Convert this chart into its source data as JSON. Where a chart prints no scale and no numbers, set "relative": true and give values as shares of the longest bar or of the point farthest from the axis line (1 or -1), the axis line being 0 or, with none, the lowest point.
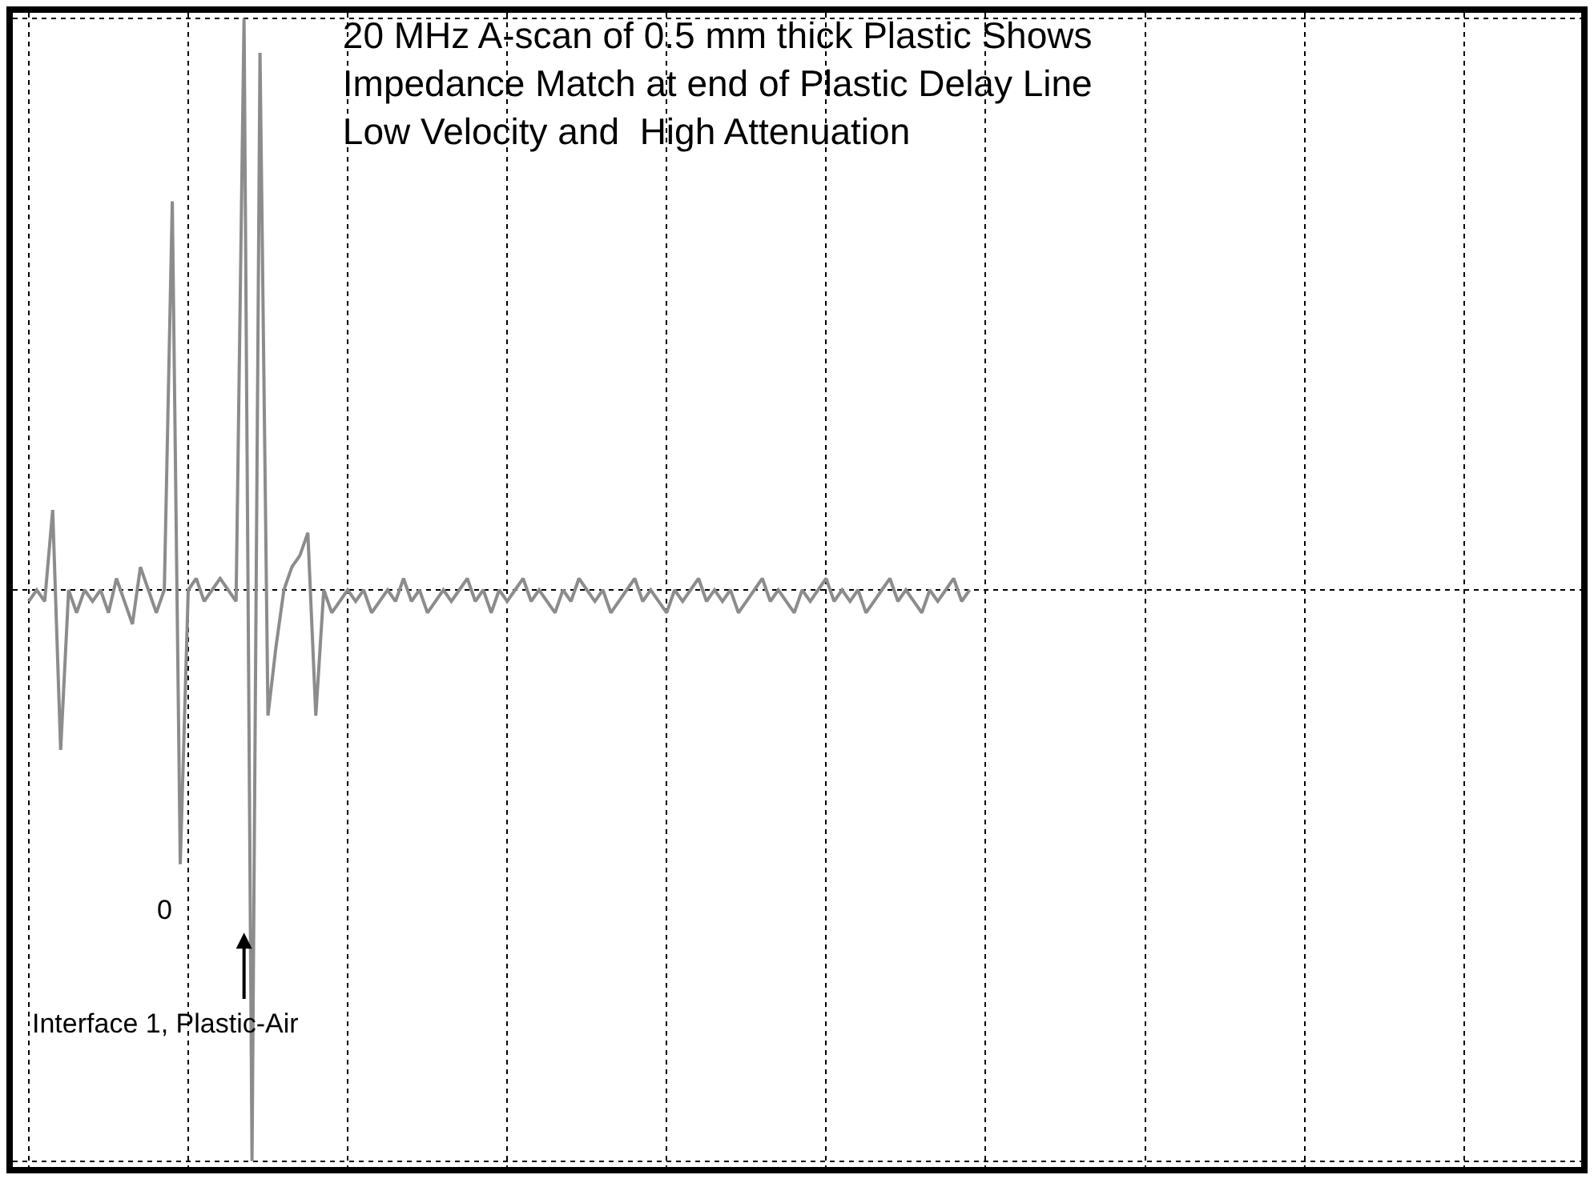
{
  "chart_data": {
    "type": "line",
    "relative": true,
    "title": "20 MHz A-scan of 0.5 mm thick Plastic Shows\nImpedance Match at end of Plastic Delay Line\nLow Velocity and  High Attenuation",
    "categories": [
      null,
      null,
      null,
      null,
      null,
      null,
      null,
      null,
      null,
      null,
      null,
      null,
      null,
      null,
      null,
      null,
      null,
      null,
      null,
      null,
      null,
      null,
      null,
      null,
      null,
      null,
      null,
      null,
      null,
      null,
      null,
      null,
      null,
      null,
      null,
      null,
      null,
      null,
      null,
      null,
      null,
      null,
      null,
      null,
      null,
      null,
      null,
      null,
      null,
      null,
      null,
      null,
      null,
      null,
      null,
      null,
      null,
      null,
      null,
      null,
      null,
      null,
      null,
      null,
      null,
      null,
      null,
      null,
      null,
      null,
      null,
      null,
      null,
      null,
      null,
      null,
      null,
      null,
      null,
      null,
      null,
      null,
      null,
      null,
      null,
      null,
      null,
      null,
      null,
      null,
      null,
      null,
      null,
      null,
      null,
      null,
      null,
      null,
      null,
      null,
      null,
      null,
      null,
      null,
      null,
      null,
      null,
      null,
      null,
      null,
      null,
      null,
      null,
      null,
      null,
      null,
      null,
      null,
      null
    ],
    "series": [
      {
        "color": "#8c8c8c",
        "values": [
          0.49,
          0.5,
          0.49,
          0.57,
          0.36,
          0.5,
          0.48,
          0.5,
          0.49,
          0.5,
          0.48,
          0.51,
          0.49,
          0.47,
          0.52,
          0.5,
          0.48,
          0.5,
          0.84,
          0.26,
          0.5,
          0.51,
          0.49,
          0.5,
          0.51,
          0.5,
          0.49,
          1.0,
          0.0,
          0.97,
          0.39,
          0.45,
          0.5,
          0.52,
          0.53,
          0.55,
          0.39,
          0.5,
          0.48,
          0.49,
          0.5,
          0.49,
          0.5,
          0.48,
          0.49,
          0.5,
          0.49,
          0.51,
          0.49,
          0.5,
          0.48,
          0.49,
          0.5,
          0.49,
          0.5,
          0.51,
          0.49,
          0.5,
          0.48,
          0.5,
          0.49,
          0.5,
          0.51,
          0.49,
          0.5,
          0.49,
          0.48,
          0.5,
          0.49,
          0.51,
          0.5,
          0.49,
          0.5,
          0.48,
          0.49,
          0.5,
          0.51,
          0.49,
          0.5,
          0.49,
          0.48,
          0.5,
          0.49,
          0.5,
          0.51,
          0.49,
          0.5,
          0.49,
          0.5,
          0.48,
          0.49,
          0.5,
          0.51,
          0.49,
          0.5,
          0.49,
          0.48,
          0.5,
          0.49,
          0.5,
          0.51,
          0.49,
          0.5,
          0.49,
          0.5,
          0.48,
          0.49,
          0.5,
          0.51,
          0.49,
          0.5,
          0.49,
          0.48,
          0.5,
          0.49,
          0.5,
          0.51,
          0.49,
          0.5
        ]
      }
    ],
    "annotations": [
      "0",
      "Interface 1, Plastic-Air"
    ],
    "grid": true,
    "marker": "none",
    "line_style": "solid"
  }
}
